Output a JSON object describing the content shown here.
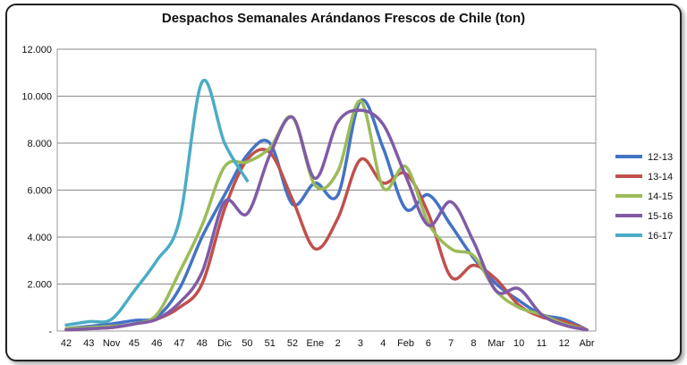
{
  "chart_data": {
    "type": "line",
    "title": "Despachos Semanales Arándanos  Frescos de Chile (ton)",
    "xlabel": "",
    "ylabel": "",
    "x_ticks": [
      "42",
      "43",
      "Nov",
      "45",
      "46",
      "47",
      "48",
      "Dic",
      "50",
      "51",
      "52",
      "Ene",
      "2",
      "3",
      "4",
      "Feb",
      "6",
      "7",
      "8",
      "Mar",
      "10",
      "11",
      "12",
      "Abr"
    ],
    "y_ticks": [
      "-",
      "2.000",
      "4.000",
      "6.000",
      "8.000",
      "10.000",
      "12.000"
    ],
    "ylim": [
      0,
      12000
    ],
    "grid": true,
    "legend_position": "right",
    "series": [
      {
        "name": "12-13",
        "color": "#4473c4",
        "values": [
          100,
          200,
          300,
          450,
          600,
          1800,
          4000,
          5800,
          7500,
          8000,
          5400,
          6300,
          5800,
          9800,
          7800,
          5200,
          5800,
          4500,
          3100,
          2000,
          1300,
          700,
          500,
          50
        ]
      },
      {
        "name": "13-14",
        "color": "#c0504d",
        "values": [
          50,
          100,
          150,
          300,
          500,
          1000,
          2000,
          5200,
          7300,
          7600,
          5600,
          3500,
          4800,
          7300,
          6300,
          6700,
          5000,
          2300,
          2800,
          2200,
          1100,
          600,
          400,
          50
        ]
      },
      {
        "name": "14-15",
        "color": "#9bbb59",
        "values": [
          100,
          150,
          200,
          300,
          700,
          2500,
          4500,
          7000,
          7200,
          7800,
          9100,
          6200,
          6800,
          9800,
          6100,
          7000,
          4600,
          3500,
          3200,
          1700,
          1000,
          700,
          300,
          50
        ]
      },
      {
        "name": "15-16",
        "color": "#7f5ba6",
        "values": [
          50,
          100,
          150,
          300,
          500,
          1200,
          2500,
          5500,
          5000,
          7500,
          9100,
          6500,
          8900,
          9400,
          8800,
          6600,
          4500,
          5500,
          3800,
          1700,
          1800,
          700,
          250,
          50
        ]
      },
      {
        "name": "16-17",
        "color": "#4bacc6",
        "values": [
          250,
          400,
          500,
          1700,
          3000,
          4700,
          10600,
          8000,
          6400
        ]
      }
    ]
  }
}
